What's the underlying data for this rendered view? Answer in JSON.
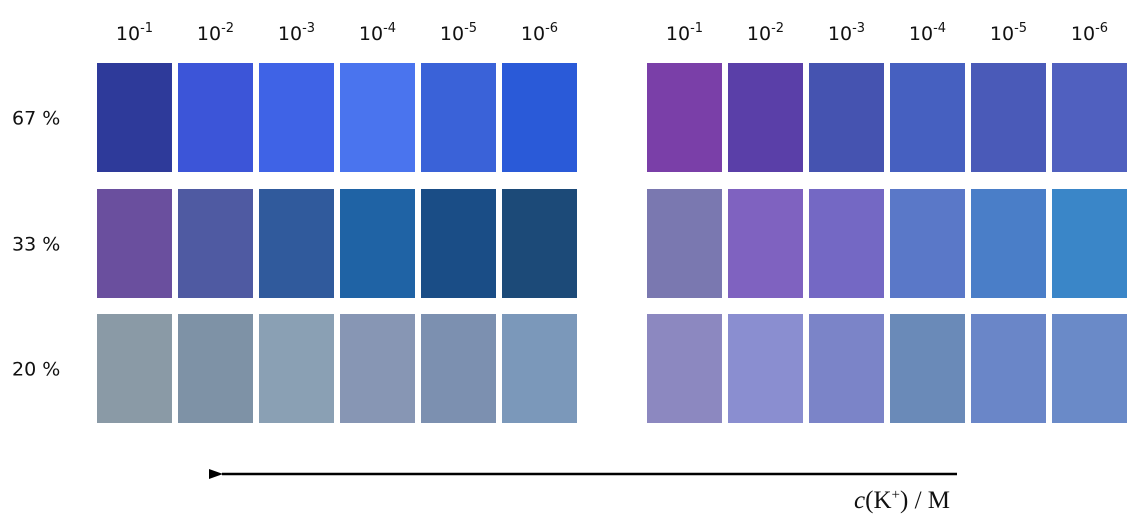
{
  "row_labels": [
    "67 %",
    "33 %",
    "20 %"
  ],
  "panels": [
    {
      "columns": [
        {
          "base": "10",
          "exponent": "-1"
        },
        {
          "base": "10",
          "exponent": "-2"
        },
        {
          "base": "10",
          "exponent": "-3"
        },
        {
          "base": "10",
          "exponent": "-4"
        },
        {
          "base": "10",
          "exponent": "-5"
        },
        {
          "base": "10",
          "exponent": "-6"
        }
      ],
      "swatch_colors": [
        [
          "#2e3a9a",
          "#3c55d8",
          "#3f63e6",
          "#4a74ee",
          "#3a62d8",
          "#2a5ad8"
        ],
        [
          "#6a4f9e",
          "#4f5aa2",
          "#305a9c",
          "#1f63a5",
          "#1a4d86",
          "#1c4a78"
        ],
        [
          "#8a9aa6",
          "#7e92a6",
          "#8aa0b4",
          "#8796b4",
          "#7c90b0",
          "#7b98ba"
        ]
      ]
    },
    {
      "columns": [
        {
          "base": "10",
          "exponent": "-1"
        },
        {
          "base": "10",
          "exponent": "-2"
        },
        {
          "base": "10",
          "exponent": "-3"
        },
        {
          "base": "10",
          "exponent": "-4"
        },
        {
          "base": "10",
          "exponent": "-5"
        },
        {
          "base": "10",
          "exponent": "-6"
        }
      ],
      "swatch_colors": [
        [
          "#7a3fa8",
          "#5a3fa8",
          "#4553b0",
          "#4660c0",
          "#4a5ab8",
          "#5060bf"
        ],
        [
          "#7a78b0",
          "#7f62c0",
          "#7468c4",
          "#5a78c8",
          "#4a7ec8",
          "#3a86c8"
        ],
        [
          "#8c88c0",
          "#8a8ed0",
          "#7b84c8",
          "#6a8ab8",
          "#6a86c8",
          "#6a8ac8"
        ]
      ]
    }
  ],
  "axis_label": {
    "variable": "c",
    "open": "(K",
    "superscript": "+",
    "close": ") / M"
  }
}
